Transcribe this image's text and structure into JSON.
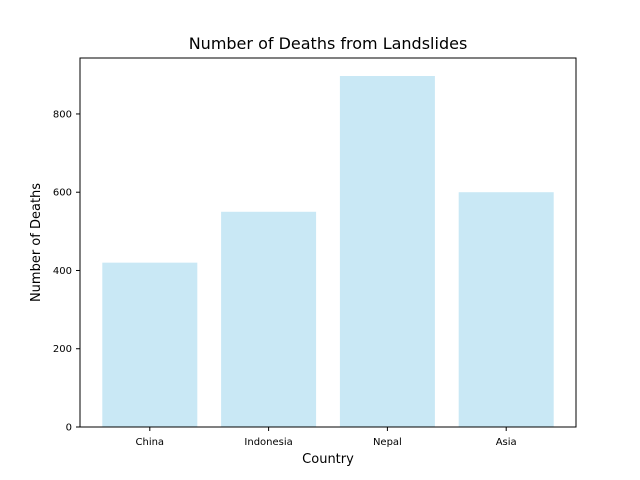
{
  "chart_data": {
    "type": "bar",
    "title": "Number of Deaths from Landslides",
    "xlabel": "Country",
    "ylabel": "Number of Deaths",
    "categories": [
      "China",
      "Indonesia",
      "Nepal",
      "Asia"
    ],
    "values": [
      420,
      550,
      897,
      600
    ],
    "ylim": [
      0,
      943
    ],
    "yticks": [
      0,
      200,
      400,
      600,
      800
    ],
    "grid": false,
    "bar_color": "#c9e8f5"
  }
}
